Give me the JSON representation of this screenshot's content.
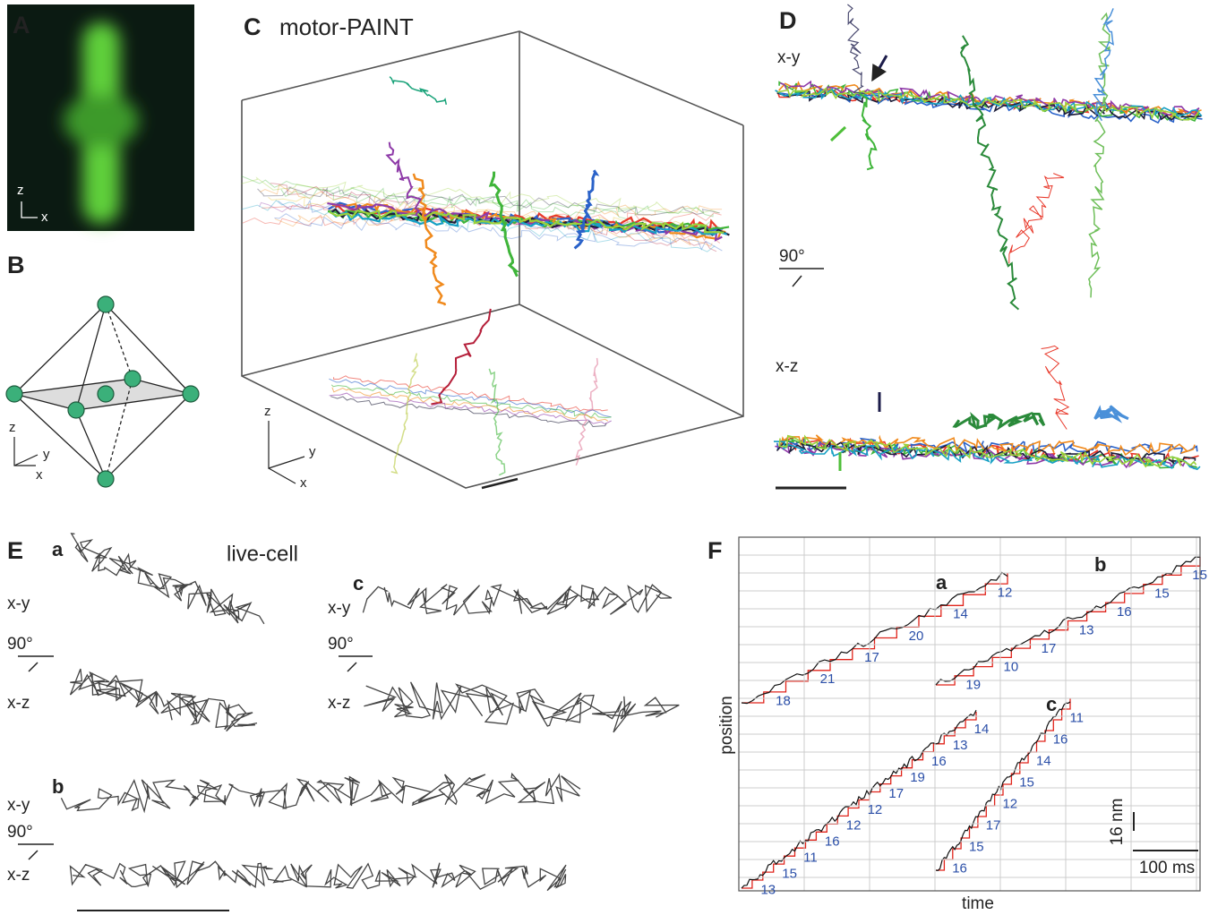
{
  "panels": {
    "a": {
      "label": "A",
      "axes": [
        "z",
        "x"
      ]
    },
    "b": {
      "label": "B",
      "axes": [
        "z",
        "y",
        "x"
      ]
    },
    "c": {
      "label": "C",
      "title": "motor-PAINT",
      "axes": [
        "z",
        "y",
        "x"
      ]
    },
    "d": {
      "label": "D",
      "views": [
        "x-y",
        "x-z"
      ],
      "rotation": "90°"
    },
    "e": {
      "label": "E",
      "title": "live-cell",
      "cells": [
        {
          "label": "a",
          "views": [
            "x-y",
            "x-z"
          ],
          "rotation": "90°"
        },
        {
          "label": "c",
          "views": [
            "x-y",
            "x-z"
          ],
          "rotation": "90°"
        },
        {
          "label": "b",
          "views": [
            "x-y",
            "x-z"
          ],
          "rotation": "90°"
        }
      ]
    },
    "f": {
      "label": "F",
      "y_label": "position",
      "x_label": "time",
      "scale_y": "16 nm",
      "scale_x": "100 ms",
      "traces": [
        {
          "label": "a",
          "steps": [
            "18",
            "21",
            "17",
            "20",
            "14",
            "12"
          ]
        },
        {
          "steps": [
            "13",
            "15",
            "11",
            "16",
            "12",
            "12",
            "17",
            "19",
            "16",
            "13",
            "14"
          ]
        },
        {
          "label": "b",
          "steps": [
            "19",
            "10",
            "17",
            "13",
            "16",
            "15",
            "15"
          ]
        },
        {
          "label": "c",
          "steps": [
            "16",
            "15",
            "17",
            "12",
            "15",
            "14",
            "16",
            "11"
          ]
        }
      ]
    }
  }
}
